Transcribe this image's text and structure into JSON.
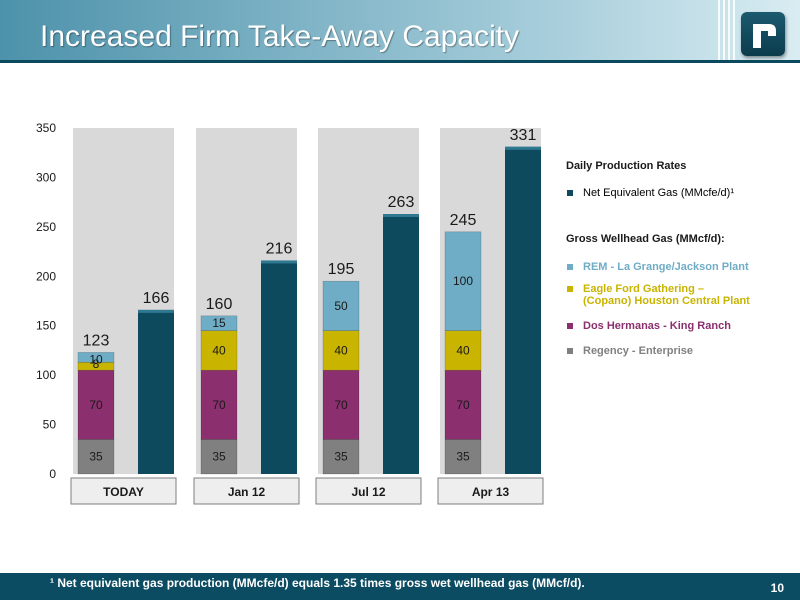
{
  "slide": {
    "title": "Increased Firm Take-Away Capacity",
    "footnote": "¹  Net equivalent gas production (MMcfe/d) equals 1.35 times gross wet wellhead gas (MMcf/d).",
    "page_number": "10",
    "logo_letter": "r"
  },
  "colors": {
    "header_dark": "#0b4c63",
    "panel": "#d9d9d9",
    "net_gas": "#0d4a5e",
    "rem": "#6fadc6",
    "eagle_ford": "#c9b400",
    "dos_hermanas": "#8b2f6e",
    "regency": "#808080"
  },
  "legend": {
    "daily_header": "Daily Production Rates",
    "net_label": "Net Equivalent Gas (MMcfe/d)¹",
    "gross_header": "Gross Wellhead Gas (MMcf/d):",
    "items": [
      {
        "label": "REM - La Grange/Jackson Plant",
        "color": "#6fadc6"
      },
      {
        "label": "Eagle Ford Gathering –\n(Copano) Houston Central Plant",
        "color": "#c9b400"
      },
      {
        "label": "Dos Hermanas - King Ranch",
        "color": "#8b2f6e"
      },
      {
        "label": "Regency - Enterprise",
        "color": "#808080"
      }
    ]
  },
  "chart_data": {
    "type": "bar",
    "categories": [
      "TODAY",
      "Jan 12",
      "Jul 12",
      "Apr 13"
    ],
    "ylim": [
      0,
      350
    ],
    "yticks": [
      0,
      50,
      100,
      150,
      200,
      250,
      300,
      350
    ],
    "stacked_series": [
      {
        "name": "Regency - Enterprise",
        "color": "#808080",
        "values": [
          35,
          35,
          35,
          35
        ],
        "labels": [
          "35",
          "35",
          "35",
          "35"
        ]
      },
      {
        "name": "Dos Hermanas - King Ranch",
        "color": "#8b2f6e",
        "values": [
          70,
          70,
          70,
          70
        ],
        "labels": [
          "70",
          "70",
          "70",
          "70"
        ]
      },
      {
        "name": "Eagle Ford Gathering – (Copano) Houston Central Plant",
        "color": "#c9b400",
        "values": [
          8,
          40,
          40,
          40
        ],
        "labels": [
          "8",
          "40",
          "40",
          "40"
        ]
      },
      {
        "name": "REM - La Grange/Jackson Plant",
        "color": "#6fadc6",
        "values": [
          10,
          15,
          50,
          100
        ],
        "labels": [
          "10",
          "15",
          "50",
          "100"
        ]
      }
    ],
    "stack_totals": [
      123,
      160,
      195,
      245
    ],
    "net_series": {
      "name": "Net Equivalent Gas (MMcfe/d)¹",
      "color": "#0d4a5e",
      "values": [
        166,
        216,
        263,
        331
      ]
    },
    "grid": false
  }
}
